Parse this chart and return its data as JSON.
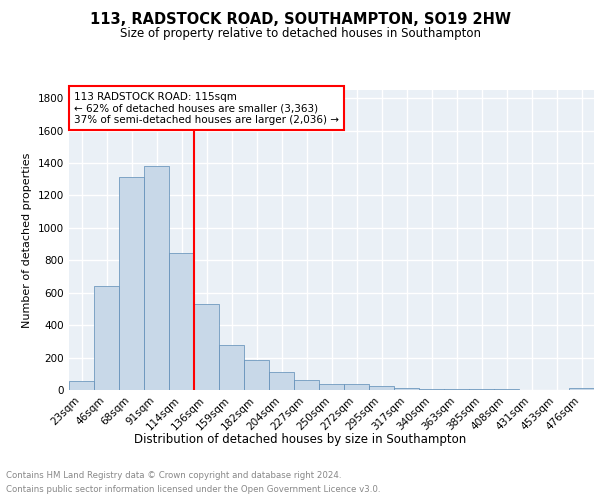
{
  "title": "113, RADSTOCK ROAD, SOUTHAMPTON, SO19 2HW",
  "subtitle": "Size of property relative to detached houses in Southampton",
  "xlabel": "Distribution of detached houses by size in Southampton",
  "ylabel": "Number of detached properties",
  "categories": [
    "23sqm",
    "46sqm",
    "68sqm",
    "91sqm",
    "114sqm",
    "136sqm",
    "159sqm",
    "182sqm",
    "204sqm",
    "227sqm",
    "250sqm",
    "272sqm",
    "295sqm",
    "317sqm",
    "340sqm",
    "363sqm",
    "385sqm",
    "408sqm",
    "431sqm",
    "453sqm",
    "476sqm"
  ],
  "values": [
    55,
    640,
    1315,
    1380,
    845,
    530,
    275,
    183,
    108,
    62,
    37,
    37,
    22,
    14,
    7,
    7,
    7,
    7,
    3,
    3,
    10
  ],
  "bar_color": "#c8d8e8",
  "bar_edge_color": "#5a8ab5",
  "bar_width": 1.0,
  "vline_x": 4,
  "vline_color": "red",
  "annotation_text": "113 RADSTOCK ROAD: 115sqm\n← 62% of detached houses are smaller (3,363)\n37% of semi-detached houses are larger (2,036) →",
  "annotation_box_color": "white",
  "annotation_box_edge_color": "red",
  "ylim": [
    0,
    1850
  ],
  "yticks": [
    0,
    200,
    400,
    600,
    800,
    1000,
    1200,
    1400,
    1600,
    1800
  ],
  "background_color": "#eaf0f6",
  "grid_color": "white",
  "footer_line1": "Contains HM Land Registry data © Crown copyright and database right 2024.",
  "footer_line2": "Contains public sector information licensed under the Open Government Licence v3.0."
}
